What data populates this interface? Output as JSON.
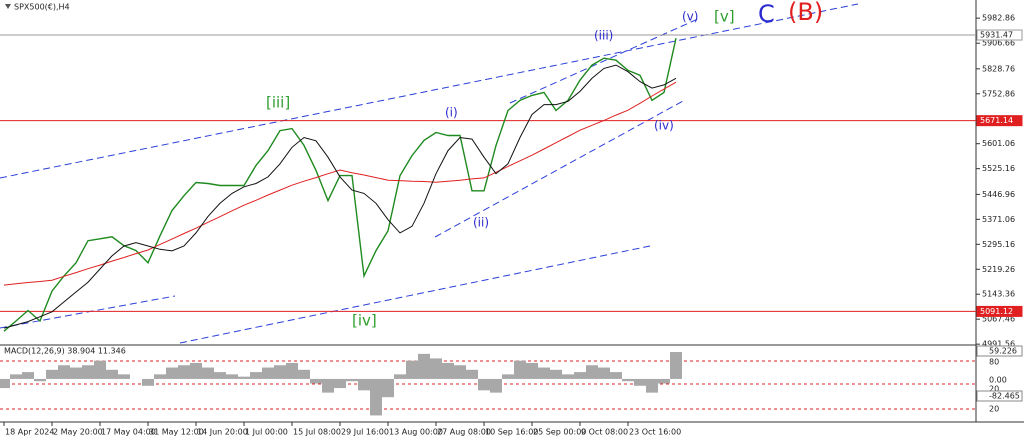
{
  "chart_data": [
    {
      "type": "line",
      "title": "SPX500(€),H4",
      "categories": [
        "18 Apr 2024",
        null,
        null,
        null,
        "2 May 20:00",
        null,
        null,
        null,
        "17 May 04:00",
        null,
        null,
        null,
        "31 May 12:00",
        null,
        null,
        null,
        "14 Jun 20:00",
        null,
        null,
        null,
        "1 Jul 00:00",
        null,
        null,
        null,
        "15 Jul 08:00",
        null,
        null,
        null,
        "29 Jul 16:00",
        null,
        null,
        null,
        "13 Aug 00:00",
        null,
        null,
        null,
        "27 Aug 08:00",
        null,
        null,
        null,
        "10 Sep 16:00",
        null,
        null,
        null,
        "25 Sep 00:00",
        null,
        null,
        null,
        "9 Oct 08:00",
        null,
        null,
        null,
        "23 Oct 16:00",
        null,
        null,
        null,
        null
      ],
      "series": [
        {
          "color": "#1f8a1f",
          "values": [
            5031,
            5062,
            5094,
            5062,
            5153,
            5199,
            5239,
            5306,
            5312,
            5318,
            5291,
            5276,
            5239,
            5321,
            5398,
            5443,
            5483,
            5480,
            5474,
            5474,
            5474,
            5535,
            5580,
            5641,
            5647,
            5596,
            5520,
            5428,
            5504,
            5504,
            5199,
            5276,
            5336,
            5504,
            5565,
            5611,
            5635,
            5626,
            5626,
            5458,
            5458,
            5596,
            5702,
            5733,
            5748,
            5757,
            5702,
            5733,
            5794,
            5840,
            5861,
            5855,
            5824,
            5809,
            5733,
            5757,
            5922
          ]
        },
        {
          "color": "#e02020",
          "values": [
            5171,
            5175,
            5179,
            5182,
            5186,
            5198,
            5209,
            5221,
            5232,
            5244,
            5255,
            5267,
            5278,
            5295,
            5311,
            5328,
            5344,
            5362,
            5379,
            5397,
            5414,
            5429,
            5445,
            5460,
            5475,
            5487,
            5498,
            5510,
            5521,
            5513,
            5506,
            5498,
            5490,
            5489,
            5487,
            5486,
            5484,
            5487,
            5490,
            5494,
            5497,
            5514,
            5532,
            5549,
            5566,
            5585,
            5604,
            5623,
            5642,
            5657,
            5672,
            5688,
            5703,
            5724,
            5746,
            5767,
            5788
          ]
        },
        {
          "color": "#111111",
          "values": [
            5040,
            5050,
            5060,
            5075,
            5090,
            5120,
            5150,
            5180,
            5220,
            5260,
            5290,
            5300,
            5290,
            5280,
            5275,
            5290,
            5330,
            5380,
            5420,
            5450,
            5470,
            5480,
            5500,
            5540,
            5590,
            5620,
            5610,
            5560,
            5500,
            5460,
            5450,
            5420,
            5370,
            5330,
            5350,
            5420,
            5510,
            5580,
            5620,
            5615,
            5560,
            5510,
            5540,
            5620,
            5690,
            5720,
            5720,
            5730,
            5760,
            5800,
            5830,
            5840,
            5820,
            5790,
            5770,
            5780,
            5800
          ]
        }
      ],
      "ylim": [
        4989,
        6038
      ],
      "yticks": [
        5982.86,
        5906.66,
        5828.76,
        5752.86,
        5601.06,
        5525.16,
        5446.96,
        5371.06,
        5295.16,
        5219.26,
        5143.36,
        5067.46,
        4991.56
      ],
      "hlines": [
        {
          "value": 5931.47,
          "color": "#9a9a9a"
        },
        {
          "value": 5671.14,
          "color": "#e02020"
        },
        {
          "value": 5091.12,
          "color": "#e02020"
        }
      ],
      "annotations": [
        {
          "text": "[iii]",
          "color": "#2e9e2e"
        },
        {
          "text": "[iv]",
          "color": "#2e9e2e"
        },
        {
          "text": "(i)",
          "color": "#2a2ad0"
        },
        {
          "text": "(ii)",
          "color": "#2a2ad0"
        },
        {
          "text": "(iii)",
          "color": "#2a2ad0"
        },
        {
          "text": "(iv)",
          "color": "#2a2ad0"
        },
        {
          "text": "(v)",
          "color": "#2a2ad0"
        },
        {
          "text": "[v]",
          "color": "#2e9e2e"
        },
        {
          "text": "C",
          "color": "#2a2ad0"
        },
        {
          "text": "(B)",
          "color": "#e02020"
        }
      ]
    },
    {
      "type": "bar",
      "title": "MACD(12,26,9) 38.904 11.346",
      "color": "#a8a8a8",
      "values": [
        -20,
        10,
        15,
        -5,
        20,
        30,
        25,
        30,
        40,
        20,
        10,
        0,
        -15,
        10,
        25,
        30,
        35,
        25,
        15,
        10,
        5,
        15,
        25,
        30,
        35,
        20,
        -10,
        -30,
        -20,
        -5,
        -25,
        -80,
        -40,
        10,
        40,
        55,
        45,
        35,
        30,
        20,
        -25,
        -30,
        10,
        40,
        35,
        25,
        20,
        10,
        15,
        30,
        25,
        15,
        -5,
        -15,
        -30,
        -10,
        59
      ],
      "ylim": [
        -90,
        70
      ],
      "scale_labels": [
        "59.226",
        "80",
        "0.00",
        "20",
        "-82.465",
        "20"
      ]
    }
  ]
}
